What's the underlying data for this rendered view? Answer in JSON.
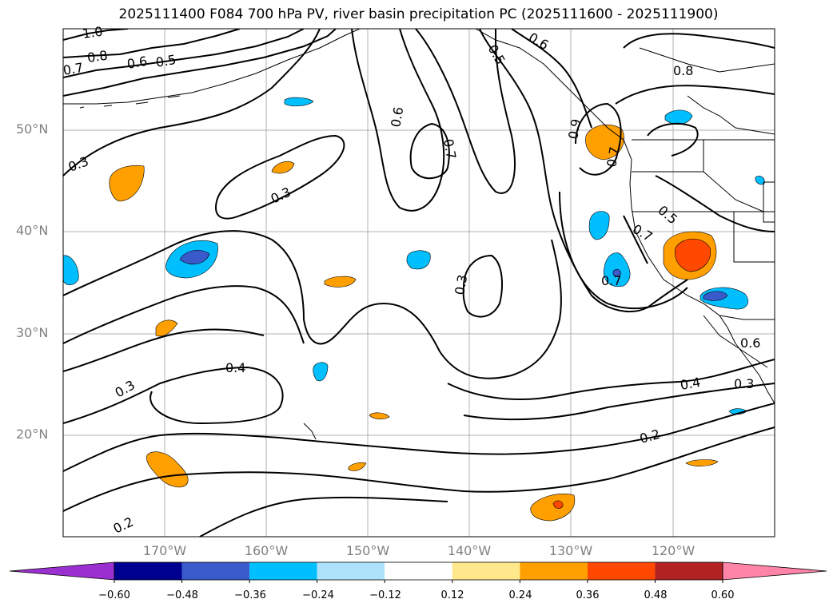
{
  "title": "2025111400 F084 700 hPa PV, river basin precipitation PC (2025111600 - 2025111900)",
  "lat_labels": [
    "50°N",
    "40°N",
    "30°N",
    "20°N"
  ],
  "lon_labels": [
    "170°W",
    "160°W",
    "150°W",
    "140°W",
    "130°W",
    "120°W"
  ],
  "contour_labels": [
    "1.0",
    "0.8",
    "0.7",
    "0.6",
    "0.5",
    "0.6",
    "0.5",
    "0.7",
    "0.3",
    "0.3",
    "0.6",
    "0.8",
    "0.9",
    "0.7",
    "0.5",
    "0.7",
    "0.7",
    "0.3",
    "0.4",
    "0.3",
    "0.4",
    "0.3",
    "0.6",
    "0.2",
    "0.2"
  ],
  "colorbar": {
    "tick_labels": [
      "−0.60",
      "−0.48",
      "−0.36",
      "−0.24",
      "−0.12",
      "0.12",
      "0.24",
      "0.36",
      "0.48",
      "0.60"
    ],
    "colors": [
      "#9b30d0",
      "#000090",
      "#3a5acc",
      "#00bfff",
      "#aee2fa",
      "#ffffff",
      "#ffe88c",
      "#ffa000",
      "#ff4800",
      "#b22222",
      "#ff85a8"
    ]
  }
}
